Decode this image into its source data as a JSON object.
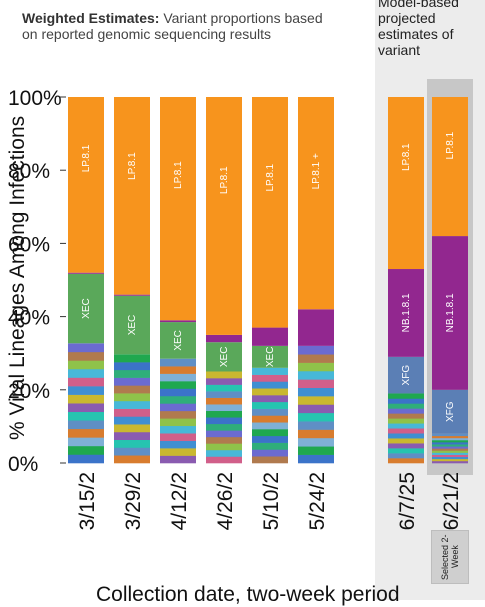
{
  "title_bold": "Weighted Estimates:",
  "title_rest": " Variant proportions based on reported genomic sequencing results",
  "projection_title": "Model-based projected estimates of variant",
  "selected_label": "Selected 2-Week",
  "chart_data": {
    "type": "bar",
    "stacked": true,
    "ylabel": "% Viral Lineages Among Infections",
    "xlabel": "Collection date, two-week period",
    "yticks": [
      "0%",
      "20%",
      "40%",
      "60%",
      "80%",
      "100%"
    ],
    "ylim": [
      0,
      100
    ],
    "categories": [
      "3/15/2",
      "3/29/2",
      "4/12/2",
      "4/26/2",
      "5/10/2",
      "5/24/2",
      "6/7/25",
      "6/21/2"
    ],
    "segment_colors": {
      "LP.8.1": "#f7941d",
      "NB.1.8.1": "#92278f",
      "XEC": "#5aa85a",
      "XFG": "#5b7fb5",
      "minor": [
        "#3b73c9",
        "#1fa84f",
        "#7fb0d6",
        "#d87c2e",
        "#5f8fc5",
        "#26c4b0",
        "#8a5bb0",
        "#c9b830",
        "#3f8fd2",
        "#d15f8a",
        "#47b8d8",
        "#8fc24a",
        "#b07a4e",
        "#6b6bd0",
        "#2fae7a"
      ]
    },
    "series": [
      {
        "name": "LP.8.1",
        "values": [
          48,
          54,
          61,
          65,
          63,
          58,
          47,
          38
        ]
      },
      {
        "name": "NB.1.8.1",
        "values": [
          0.3,
          0.3,
          0.5,
          2,
          5,
          10,
          24,
          42
        ]
      },
      {
        "name": "XEC",
        "values": [
          19,
          16,
          10,
          8,
          6,
          0,
          0,
          0
        ]
      },
      {
        "name": "XFG",
        "values": [
          0,
          0,
          0,
          0,
          0,
          0,
          10,
          12
        ]
      }
    ],
    "bar_labels": [
      "LP.8.1",
      "LP.8.1",
      "LP.8.1",
      "LP.8.1",
      "LP.8.1",
      "LP.8.1 +",
      "LP.8.1",
      "LP.8.1"
    ],
    "xec_labels": [
      "XEC",
      "XEC",
      "XEC",
      "XEC",
      "XEC",
      "",
      "",
      ""
    ],
    "nb_labels": [
      "",
      "",
      "",
      "",
      "",
      "",
      "NB.1.8.1",
      "NB.1.8.1"
    ],
    "xfg_labels": [
      "",
      "",
      "",
      "",
      "",
      "",
      "XFG",
      "XFG"
    ]
  }
}
